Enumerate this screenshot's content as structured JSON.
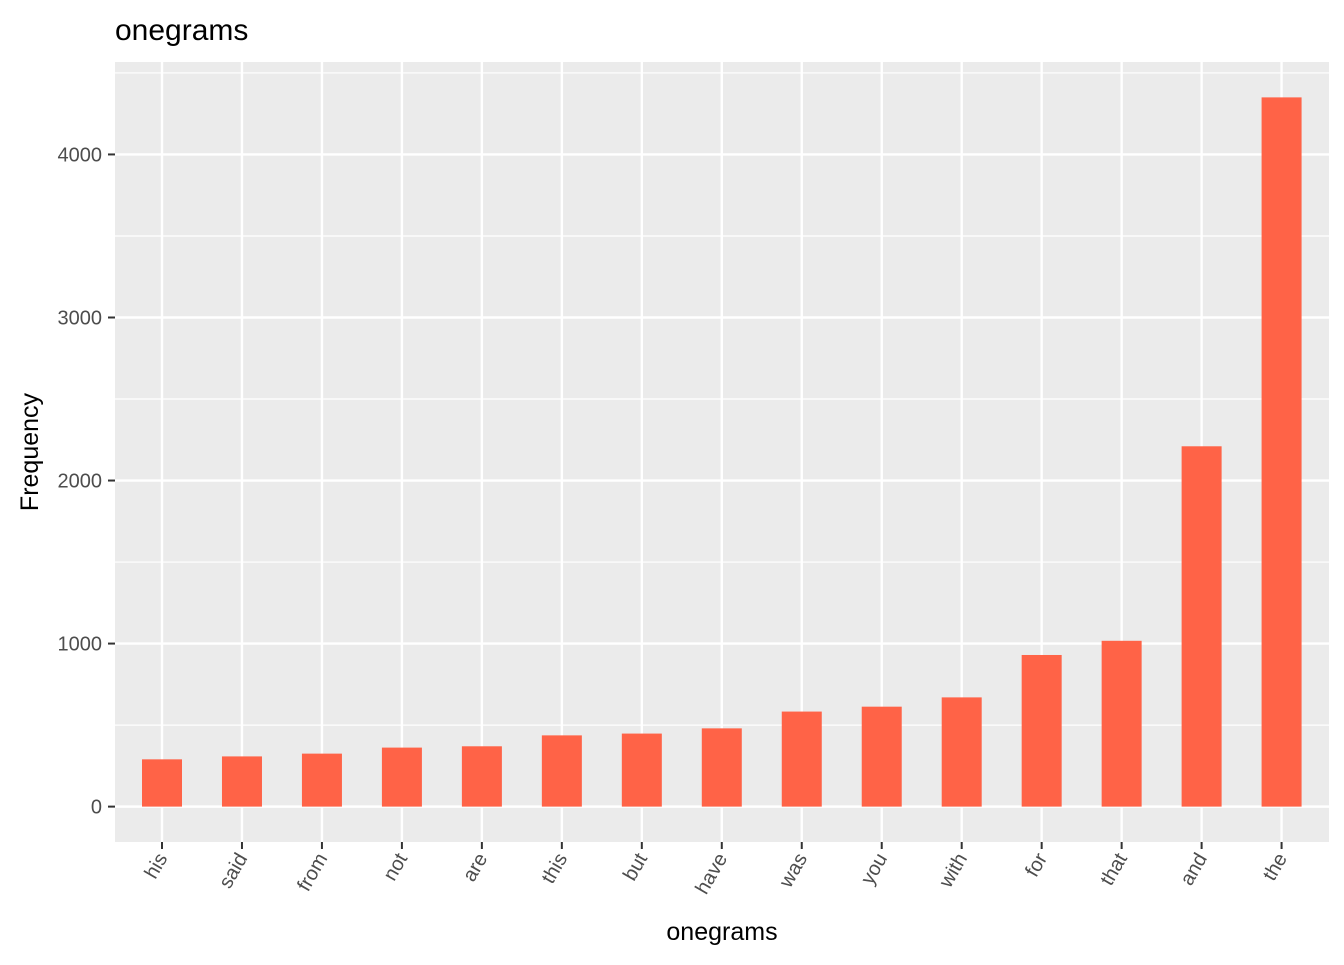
{
  "chart_data": {
    "type": "bar",
    "title": "onegrams",
    "xlabel": "onegrams",
    "ylabel": "Frequency",
    "categories": [
      "his",
      "said",
      "from",
      "not",
      "are",
      "this",
      "but",
      "have",
      "was",
      "you",
      "with",
      "for",
      "that",
      "and",
      "the"
    ],
    "values": [
      290,
      308,
      325,
      362,
      370,
      437,
      448,
      480,
      583,
      613,
      670,
      930,
      1017,
      2210,
      4350
    ],
    "yticks": [
      0,
      1000,
      2000,
      3000,
      4000
    ],
    "ylim": [
      -217,
      4567
    ],
    "grid": true,
    "legend": "none",
    "colors": {
      "bar": "#FF6347",
      "panel": "#EBEBEB",
      "grid": "#FFFFFF",
      "tick_text": "#4D4D4D",
      "tick_mark": "#333333"
    }
  }
}
